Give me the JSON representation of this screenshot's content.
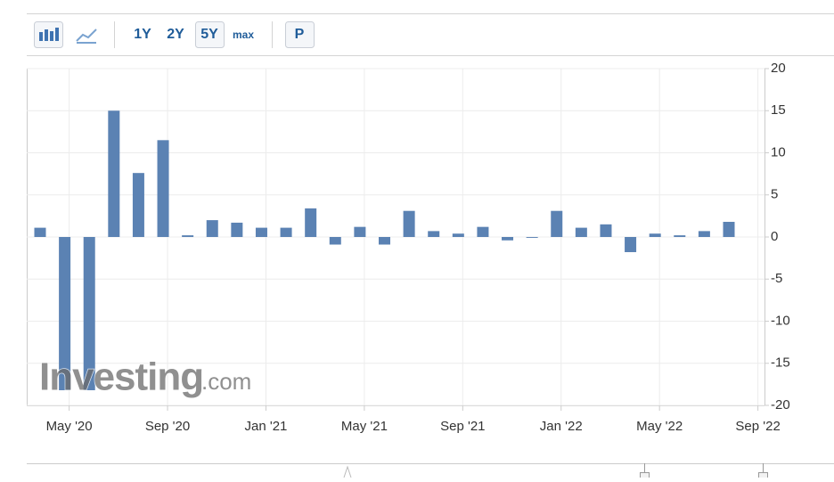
{
  "toolbar": [
    "1Y",
    "2Y",
    "5Y",
    "max",
    "P"
  ],
  "chart_data": {
    "type": "bar",
    "watermark": [
      "Investing",
      ".com"
    ],
    "categories": [
      null,
      "May '20",
      null,
      null,
      null,
      "Sep '20",
      null,
      null,
      null,
      "Jan '21",
      null,
      null,
      null,
      "May '21",
      null,
      null,
      null,
      "Sep '21",
      null,
      null,
      null,
      "Jan '22",
      null,
      null,
      null,
      "May '22",
      null,
      null,
      null,
      "Sep '22"
    ],
    "values": [
      1.1,
      -18.2,
      -18.2,
      15.0,
      7.6,
      11.5,
      0.2,
      2.0,
      1.7,
      1.1,
      1.1,
      3.4,
      -0.9,
      1.2,
      -0.9,
      3.1,
      0.7,
      0.4,
      1.2,
      -0.4,
      -0.1,
      3.1,
      1.1,
      1.5,
      -1.8,
      0.4,
      0.2,
      0.7,
      1.8,
      null
    ],
    "color": "#5b82b3",
    "ylim": [
      -20,
      20
    ],
    "yticks": [
      -20,
      -15,
      -10,
      -5,
      0,
      5,
      10,
      15,
      20
    ],
    "grid": true
  }
}
